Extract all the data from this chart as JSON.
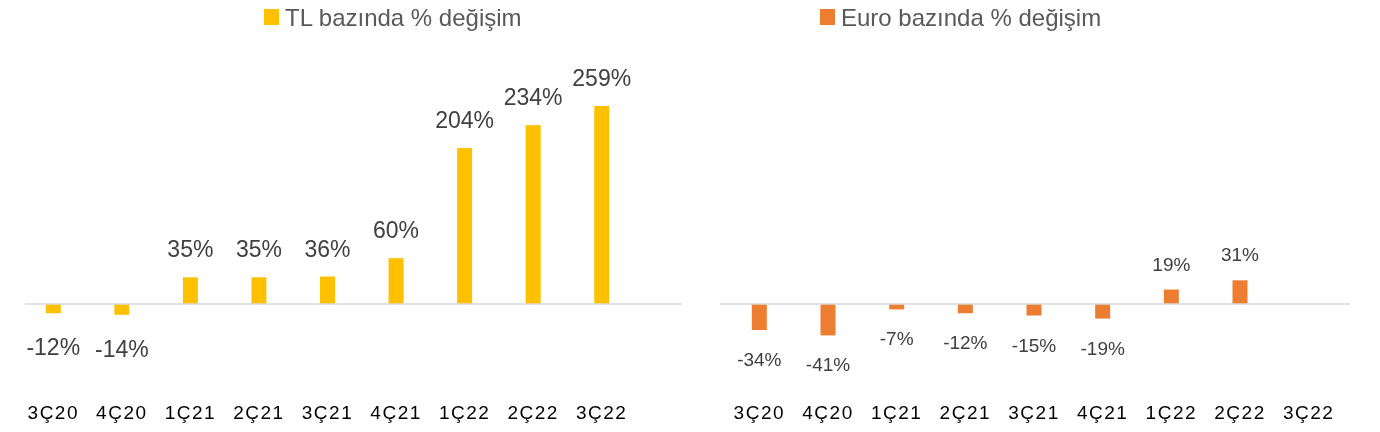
{
  "chart_data": [
    {
      "type": "bar",
      "categories": [
        "3Ç20",
        "4Ç20",
        "1Ç21",
        "2Ç21",
        "3Ç21",
        "4Ç21",
        "1Ç22",
        "2Ç22",
        "3Ç22"
      ],
      "legend": "top",
      "series": [
        {
          "name": "TL bazında % değişim",
          "color": "#ffc000",
          "values": [
            -12,
            -14,
            35,
            35,
            36,
            60,
            204,
            234,
            259
          ],
          "value_labels": [
            "-12%",
            "-14%",
            "35%",
            "35%",
            "36%",
            "60%",
            "204%",
            "234%",
            "259%"
          ]
        }
      ]
    },
    {
      "type": "bar",
      "categories": [
        "3Ç20",
        "4Ç20",
        "1Ç21",
        "2Ç21",
        "3Ç21",
        "4Ç21",
        "1Ç22",
        "2Ç22",
        "3Ç22"
      ],
      "legend": "top",
      "series": [
        {
          "name": "Euro bazında % değişim",
          "color": "#ed7d31",
          "values": [
            -34,
            -41,
            -7,
            -12,
            -15,
            -19,
            19,
            31,
            null
          ],
          "value_labels": [
            "-34%",
            "-41%",
            "-7%",
            "-12%",
            "-15%",
            "-19%",
            "19%",
            "31%",
            null
          ]
        }
      ]
    }
  ]
}
